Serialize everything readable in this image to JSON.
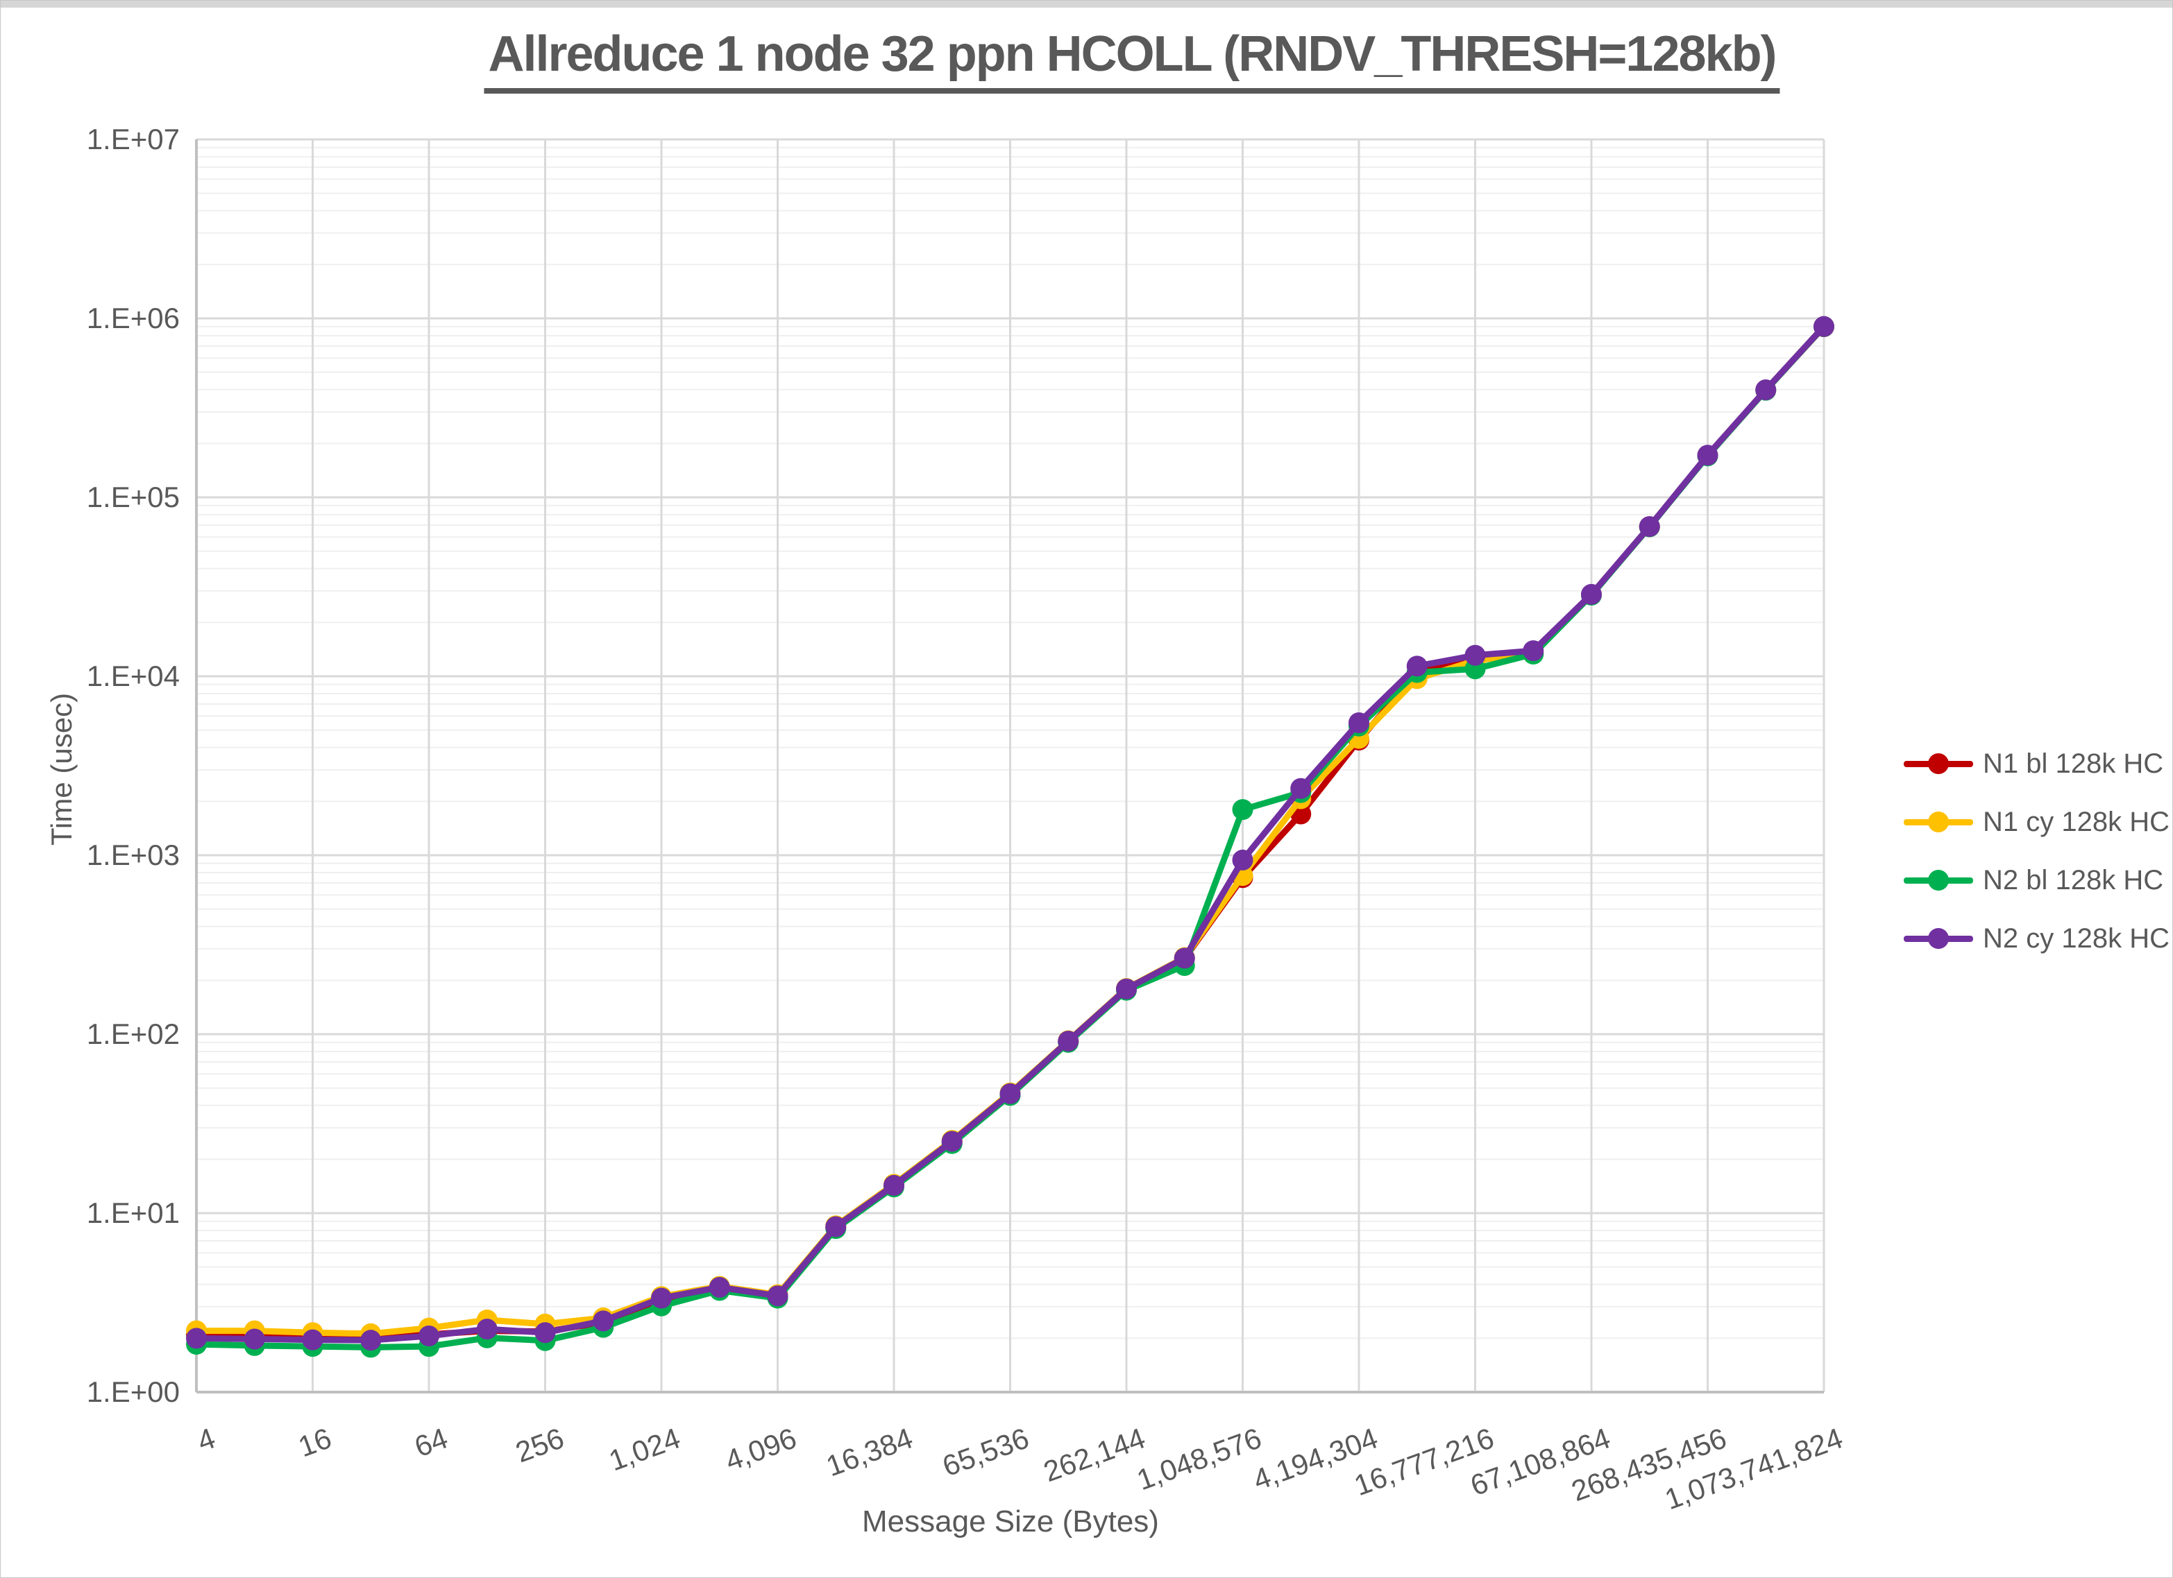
{
  "window": {
    "top_strip_color": "#d6d6d6"
  },
  "chart_data": {
    "type": "line",
    "title": "Allreduce 1 node 32 ppn HCOLL (RNDV_THRESH=128kb)",
    "xlabel": "Message Size (Bytes)",
    "ylabel": "Time (usec)",
    "x_scale": "log2",
    "y_scale": "log10",
    "ylim": [
      1,
      10000000
    ],
    "xlim": [
      4,
      1073741824
    ],
    "grid": "major-and-log-minor",
    "legend_position": "right",
    "ytick_labels": [
      "1.E+00",
      "1.E+01",
      "1.E+02",
      "1.E+03",
      "1.E+04",
      "1.E+05",
      "1.E+06",
      "1.E+07"
    ],
    "xtick_labels": [
      "4",
      "16",
      "64",
      "256",
      "1,024",
      "4,096",
      "16,384",
      "65,536",
      "262,144",
      "1,048,576",
      "4,194,304",
      "16,777,216",
      "67,108,864",
      "268,435,456",
      "1,073,741,824"
    ],
    "x": [
      4,
      8,
      16,
      32,
      64,
      128,
      256,
      512,
      1024,
      2048,
      4096,
      8192,
      16384,
      32768,
      65536,
      131072,
      262144,
      524288,
      1048576,
      2097152,
      4194304,
      8388608,
      16777216,
      33554432,
      67108864,
      134217728,
      268435456,
      536870912,
      1073741824
    ],
    "series": [
      {
        "name": "N1 bl 128k HC",
        "color": "#C00000",
        "values": [
          2.1,
          2.12,
          2.08,
          2.05,
          2.1,
          2.2,
          2.18,
          2.45,
          3.3,
          3.8,
          3.4,
          8.3,
          14.2,
          25,
          46,
          91,
          178,
          265,
          750,
          1700,
          4400,
          10400,
          12700,
          13400,
          28500,
          68500,
          171000,
          397000,
          898000
        ]
      },
      {
        "name": "N1 cy 128k HC",
        "color": "#FFC000",
        "values": [
          2.2,
          2.2,
          2.15,
          2.12,
          2.28,
          2.53,
          2.4,
          2.6,
          3.42,
          3.9,
          3.5,
          8.5,
          14.5,
          25.5,
          47,
          92,
          180,
          268,
          770,
          2070,
          4500,
          9700,
          12200,
          13600,
          28600,
          68600,
          171500,
          398000,
          900000
        ]
      },
      {
        "name": "N2 bl 128k HC",
        "color": "#00B050",
        "values": [
          1.85,
          1.82,
          1.8,
          1.78,
          1.8,
          2.01,
          1.94,
          2.3,
          3.03,
          3.7,
          3.35,
          8.2,
          14,
          24.5,
          45.5,
          90,
          176,
          242,
          1800,
          2240,
          5270,
          10500,
          11000,
          13300,
          28400,
          68400,
          170500,
          396500,
          899000
        ]
      },
      {
        "name": "N2 cy 128k HC",
        "color": "#7030A0",
        "values": [
          2.0,
          1.98,
          1.96,
          1.95,
          2.06,
          2.25,
          2.15,
          2.5,
          3.35,
          3.85,
          3.45,
          8.4,
          14.3,
          25.2,
          46.5,
          91.5,
          179,
          266,
          940,
          2360,
          5500,
          11400,
          13100,
          13900,
          28700,
          68700,
          172000,
          399000,
          901000
        ]
      }
    ],
    "style": {
      "text_color": "#595959",
      "major_grid_color": "#D9D9D9",
      "minor_grid_color": "#EFEFEF",
      "axis_color": "#BFBFBF"
    }
  }
}
